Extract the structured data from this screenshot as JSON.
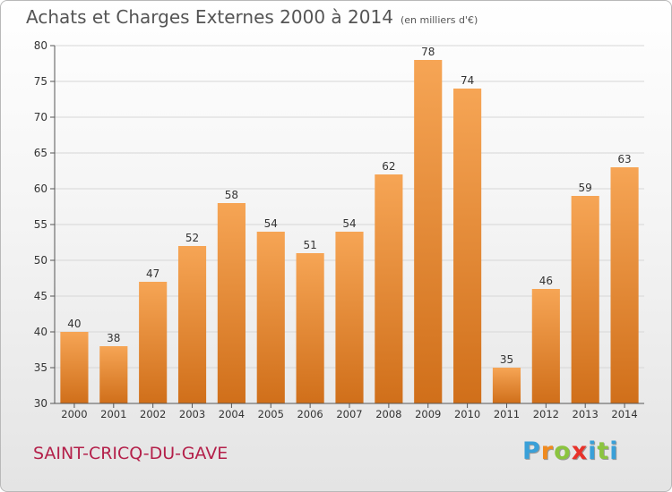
{
  "header": {
    "title": "Achats et Charges Externes 2000 à 2014",
    "subtitle": "(en milliers d'€)"
  },
  "footer": {
    "commune": "SAINT-CRICQ-DU-GAVE",
    "logo_letters": [
      "P",
      "r",
      "o",
      "x",
      "i",
      "t",
      "i"
    ],
    "logo_colors": [
      "#3aa0d8",
      "#f08a1e",
      "#8bc43f",
      "#e8322a",
      "#3aa0d8",
      "#8bc43f",
      "#3aa0d8"
    ]
  },
  "chart_data": {
    "type": "bar",
    "categories": [
      "2000",
      "2001",
      "2002",
      "2003",
      "2004",
      "2005",
      "2006",
      "2007",
      "2008",
      "2009",
      "2010",
      "2011",
      "2012",
      "2013",
      "2014"
    ],
    "values": [
      40,
      38,
      47,
      52,
      58,
      54,
      51,
      54,
      62,
      78,
      74,
      35,
      46,
      59,
      63
    ],
    "ylim": [
      30,
      80
    ],
    "yticks": [
      30,
      35,
      40,
      45,
      50,
      55,
      60,
      65,
      70,
      75,
      80
    ],
    "grid": true,
    "bar_color_top": "#f6a555",
    "bar_color_bottom": "#d06f1a",
    "grid_color": "#d6d6d6"
  }
}
